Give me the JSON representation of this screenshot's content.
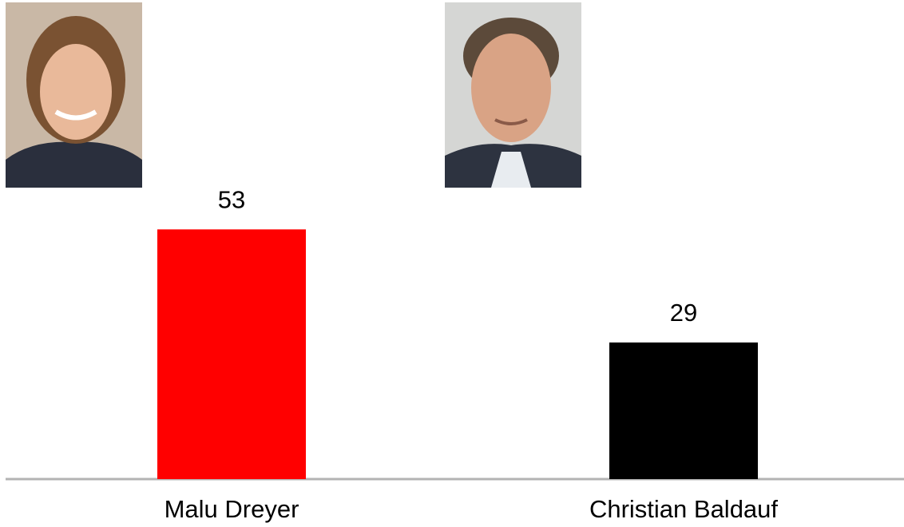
{
  "chart_data": {
    "type": "bar",
    "categories": [
      "Malu Dreyer",
      "Christian Baldauf"
    ],
    "values": [
      53,
      29
    ],
    "colors": [
      "#ff0000",
      "#000000"
    ],
    "ylim": [
      0,
      100
    ]
  }
}
